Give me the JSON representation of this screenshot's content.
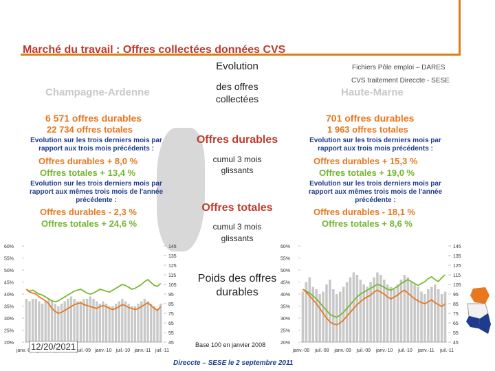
{
  "title": "Marché du travail : Offres collectées données CVS",
  "source_line1": "Fichiers Pôle emploi – DARES",
  "source_line2": "CVS traitement Direccte - SESE",
  "center": {
    "evolution": "Evolution",
    "des_offres": "des offres",
    "collectees": "collectées",
    "offres_durables": "Offres durables",
    "cumul1_l1": "cumul 3 mois",
    "cumul1_l2": "glissants",
    "offres_totales": "Offres totales",
    "cumul2_l1": "cumul 3 mois",
    "cumul2_l2": "glissants",
    "poids_l1": "Poids des offres",
    "poids_l2": "durables",
    "base": "Base 100 en janvier 2008"
  },
  "left": {
    "region": "Champagne-Ardenne",
    "durables_count": "6 571 offres durables",
    "totales_count": "22 734 offres totales",
    "evo_l1": "Evolution sur les trois derniers mois par",
    "evo_l2": "rapport aux trois mois précédents :",
    "durables_evo": "Offres durables + 8,0 %",
    "totales_evo": "Offres totales + 13,4 %",
    "evo2_l1": "Evolution sur les trois derniers mois par",
    "evo2_l2": "rapport aux mêmes trois mois de l'année",
    "evo2_l3": "précédente :",
    "durables_yoy": "Offres durables - 2,3 %",
    "totales_yoy": "Offres totales + 24,6 %"
  },
  "right": {
    "region": "Haute-Marne",
    "durables_count": "701 offres durables",
    "totales_count": "1 963 offres totales",
    "evo_l1": "Evolution sur les trois derniers mois par",
    "evo_l2": "rapport aux trois mois précédents :",
    "durables_evo": "Offres durables + 15,3 %",
    "totales_evo": "Offres totales + 19,0 %",
    "evo2_l1": "Evolution sur les trois derniers mois par",
    "evo2_l2": "rapport aux mêmes trois mois de l'année",
    "evo2_l3": "précédente :",
    "durables_yoy": "Offres durables - 18,1 %",
    "totales_yoy": "Offres totales + 8,6 %"
  },
  "date_stamp": "12/20/2021",
  "footer": "Direccte – SESE le 2 septembre 2011",
  "colors": {
    "bars": "#c8c8c8",
    "poids_line": "#7ab630",
    "index_line": "#e8771e"
  },
  "chart_data": [
    {
      "type": "bar",
      "name": "Champagne-Ardenne",
      "x_tick_labels": [
        "janv.-08",
        "juil.-08",
        "janv.-09",
        "juil.-09",
        "janv.-10",
        "juil.-10",
        "janv.-11",
        "juil.-11"
      ],
      "left_axis": {
        "ticks": [
          "20%",
          "25%",
          "30%",
          "35%",
          "40%",
          "45%",
          "50%",
          "55%",
          "60%"
        ],
        "ylim": [
          20,
          60
        ]
      },
      "right_axis": {
        "ticks": [
          "45",
          "55",
          "65",
          "75",
          "85",
          "95",
          "105",
          "115",
          "125",
          "135",
          "145"
        ],
        "ylim": [
          45,
          145
        ]
      },
      "series": [
        {
          "name": "Poids des offres durables",
          "type": "bar",
          "axis": "left",
          "values": [
            38,
            37,
            38,
            38,
            37,
            36,
            37,
            38,
            37,
            36,
            35,
            36,
            37,
            38,
            39,
            38,
            37,
            37,
            38,
            38,
            39,
            38,
            37,
            36,
            37,
            36,
            35,
            35,
            36,
            37,
            38,
            37,
            36,
            35,
            35,
            36,
            37,
            38,
            37,
            36,
            35,
            34,
            36
          ]
        },
        {
          "name": "Offres totales (indice)",
          "type": "line",
          "axis": "right",
          "values": [
            100,
            98,
            99,
            97,
            95,
            94,
            92,
            90,
            88,
            87,
            88,
            90,
            92,
            94,
            96,
            98,
            99,
            100,
            98,
            96,
            95,
            96,
            98,
            100,
            99,
            98,
            97,
            99,
            101,
            103,
            105,
            104,
            102,
            100,
            101,
            103,
            105,
            108,
            110,
            107,
            104,
            103,
            106
          ]
        },
        {
          "name": "Offres durables (indice)",
          "type": "line",
          "axis": "right",
          "values": [
            100,
            97,
            96,
            95,
            92,
            90,
            88,
            85,
            80,
            77,
            75,
            76,
            78,
            80,
            82,
            84,
            85,
            86,
            84,
            83,
            82,
            81,
            80,
            82,
            83,
            82,
            80,
            79,
            80,
            82,
            84,
            83,
            81,
            80,
            79,
            80,
            82,
            84,
            86,
            83,
            80,
            78,
            82
          ]
        }
      ]
    },
    {
      "type": "bar",
      "name": "Haute-Marne",
      "x_tick_labels": [
        "janv.-08",
        "juil.-08",
        "janv.-09",
        "juil.-09",
        "janv.-10",
        "juil.-10",
        "janv.-11",
        "juil.-11"
      ],
      "left_axis": {
        "ticks": [
          "20%",
          "25%",
          "30%",
          "35%",
          "40%",
          "45%",
          "50%",
          "55%",
          "60%"
        ],
        "ylim": [
          20,
          60
        ]
      },
      "right_axis": {
        "ticks": [
          "45",
          "55",
          "65",
          "75",
          "85",
          "95",
          "105",
          "115",
          "125",
          "135",
          "145"
        ],
        "ylim": [
          45,
          145
        ]
      },
      "series": [
        {
          "name": "Poids des offres durables",
          "type": "bar",
          "axis": "left",
          "values": [
            41,
            45,
            47,
            43,
            42,
            40,
            41,
            44,
            46,
            42,
            40,
            41,
            43,
            45,
            47,
            49,
            48,
            46,
            44,
            43,
            45,
            47,
            49,
            48,
            46,
            44,
            43,
            42,
            44,
            46,
            48,
            47,
            45,
            44,
            43,
            41,
            40,
            42,
            43,
            44,
            42,
            40,
            41
          ]
        },
        {
          "name": "Offres totales (indice)",
          "type": "line",
          "axis": "right",
          "values": [
            100,
            98,
            96,
            93,
            90,
            86,
            82,
            78,
            74,
            72,
            71,
            73,
            76,
            80,
            84,
            88,
            92,
            95,
            97,
            99,
            101,
            103,
            105,
            104,
            102,
            100,
            99,
            101,
            103,
            106,
            108,
            110,
            108,
            106,
            104,
            106,
            108,
            111,
            113,
            110,
            108,
            112,
            115
          ]
        },
        {
          "name": "Offres durables (indice)",
          "type": "line",
          "axis": "right",
          "values": [
            100,
            97,
            93,
            89,
            85,
            80,
            75,
            70,
            66,
            64,
            63,
            65,
            68,
            72,
            76,
            80,
            84,
            87,
            90,
            92,
            94,
            97,
            99,
            97,
            95,
            92,
            90,
            92,
            94,
            97,
            99,
            96,
            93,
            90,
            88,
            86,
            85,
            87,
            89,
            86,
            84,
            82,
            85
          ]
        }
      ]
    }
  ]
}
